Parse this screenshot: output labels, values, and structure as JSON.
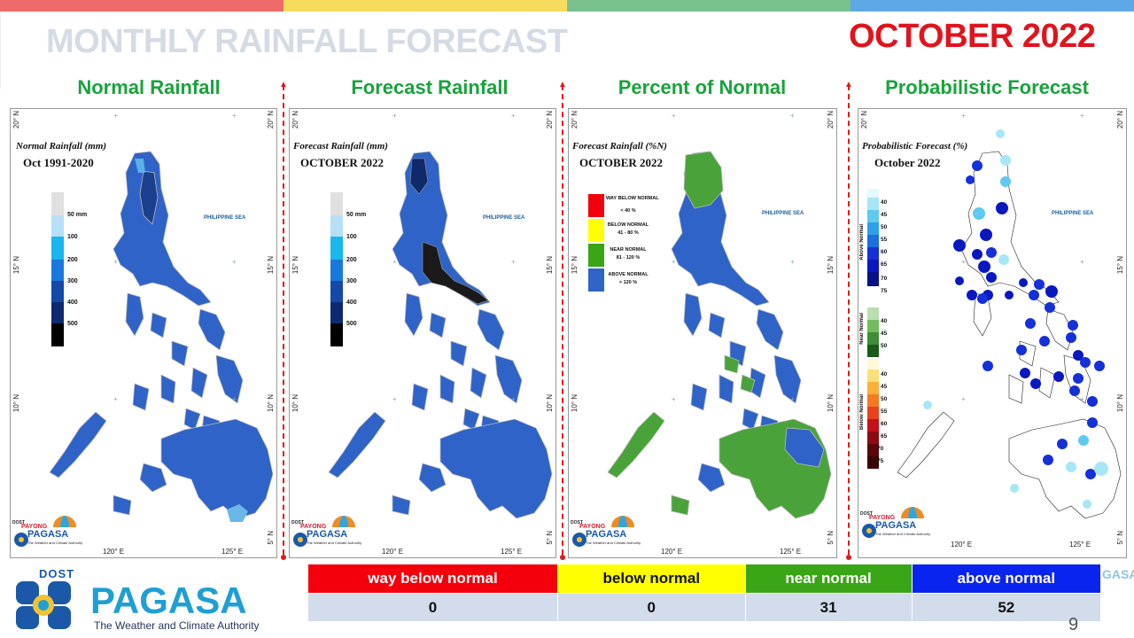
{
  "header": {
    "title": "MONTHLY RAINFALL FORECAST",
    "month": "OCTOBER 2022",
    "stripe_colors": [
      "#ef6b6b",
      "#f5dc5c",
      "#79c18e",
      "#5fa8e8"
    ]
  },
  "colors": {
    "title_gray": "#d5dbe4",
    "month_red": "#e0141e",
    "panel_title_green": "#18a33c",
    "way_below_normal": "#f4000c",
    "below_normal": "#ffff00",
    "near_normal": "#3aa516",
    "above_normal": "#0a24f0"
  },
  "panels": [
    {
      "title": "Normal Rainfall",
      "legend_title": "Normal Rainfall (mm)",
      "legend_sub": "Oct 1991-2020",
      "scale_ticks": [
        "50 mm",
        "100",
        "200",
        "300",
        "400",
        "500"
      ],
      "map_icon": "philippines-map-icon"
    },
    {
      "title": "Forecast Rainfall",
      "legend_title": "Forecast Rainfall (mm)",
      "legend_sub": "OCTOBER 2022",
      "scale_ticks": [
        "50 mm",
        "100",
        "200",
        "300",
        "400",
        "500"
      ],
      "map_icon": "philippines-map-icon"
    },
    {
      "title": "Percent of Normal",
      "legend_title": "Forecast Rainfall (%N)",
      "legend_sub": "OCTOBER 2022",
      "categories": [
        {
          "name": "WAY BELOW NORMAL",
          "range": "< 40 %"
        },
        {
          "name": "BELOW NORMAL",
          "range": "41 - 80 %"
        },
        {
          "name": "NEAR NORMAL",
          "range": "81 - 120 %"
        },
        {
          "name": "ABOVE NORMAL",
          "range": "> 120 %"
        }
      ],
      "map_icon": "philippines-map-icon"
    },
    {
      "title": "Probabilistic Forecast",
      "legend_title": "Probabilistic Forecast (%)",
      "legend_sub": "October 2022",
      "above_label": "Above Normal",
      "near_label": "Near Normal",
      "below_label": "Below Normal",
      "above_ticks": [
        "40",
        "45",
        "50",
        "55",
        "60",
        "65",
        "70",
        "75"
      ],
      "near_ticks": [
        "40",
        "45",
        "50"
      ],
      "below_ticks": [
        "40",
        "45",
        "50",
        "55",
        "60",
        "65",
        "70",
        "75"
      ],
      "map_icon": "philippines-map-icon"
    }
  ],
  "map_labels": {
    "sea": "PHILIPPINE SEA",
    "lat_20": "20° N",
    "lat_15": "15° N",
    "lat_10": "10° N",
    "lat_5": "5° N",
    "lon_120": "120° E",
    "lon_125": "125° E"
  },
  "mini_logo": {
    "dost": "DOST",
    "payong": "PAYONG",
    "pagasa": "PAGASA",
    "tagline": "The Weather and Climate Authority"
  },
  "summary": {
    "headers": [
      "way below normal",
      "below normal",
      "near normal",
      "above normal"
    ],
    "values": [
      "0",
      "0",
      "31",
      "52"
    ]
  },
  "logo": {
    "dost": "DOST",
    "name": "PAGASA",
    "tagline": "The Weather and Climate Authority"
  },
  "side_text": "GASA",
  "page_number": "9"
}
